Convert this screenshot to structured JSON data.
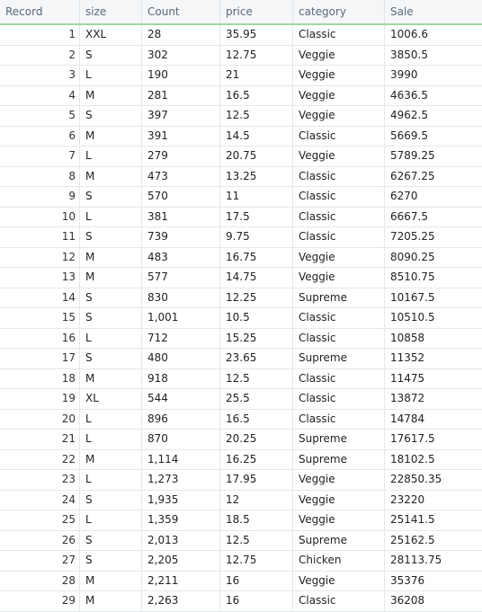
{
  "table": {
    "columns": [
      "Record",
      "size",
      "Count",
      "price",
      "category",
      "Sale"
    ],
    "rows": [
      [
        "1",
        "XXL",
        "28",
        "35.95",
        "Classic",
        "1006.6"
      ],
      [
        "2",
        "S",
        "302",
        "12.75",
        "Veggie",
        "3850.5"
      ],
      [
        "3",
        "L",
        "190",
        "21",
        "Veggie",
        "3990"
      ],
      [
        "4",
        "M",
        "281",
        "16.5",
        "Veggie",
        "4636.5"
      ],
      [
        "5",
        "S",
        "397",
        "12.5",
        "Veggie",
        "4962.5"
      ],
      [
        "6",
        "M",
        "391",
        "14.5",
        "Classic",
        "5669.5"
      ],
      [
        "7",
        "L",
        "279",
        "20.75",
        "Veggie",
        "5789.25"
      ],
      [
        "8",
        "M",
        "473",
        "13.25",
        "Classic",
        "6267.25"
      ],
      [
        "9",
        "S",
        "570",
        "11",
        "Classic",
        "6270"
      ],
      [
        "10",
        "L",
        "381",
        "17.5",
        "Classic",
        "6667.5"
      ],
      [
        "11",
        "S",
        "739",
        "9.75",
        "Classic",
        "7205.25"
      ],
      [
        "12",
        "M",
        "483",
        "16.75",
        "Veggie",
        "8090.25"
      ],
      [
        "13",
        "M",
        "577",
        "14.75",
        "Veggie",
        "8510.75"
      ],
      [
        "14",
        "S",
        "830",
        "12.25",
        "Supreme",
        "10167.5"
      ],
      [
        "15",
        "S",
        "1,001",
        "10.5",
        "Classic",
        "10510.5"
      ],
      [
        "16",
        "L",
        "712",
        "15.25",
        "Classic",
        "10858"
      ],
      [
        "17",
        "S",
        "480",
        "23.65",
        "Supreme",
        "11352"
      ],
      [
        "18",
        "M",
        "918",
        "12.5",
        "Classic",
        "11475"
      ],
      [
        "19",
        "XL",
        "544",
        "25.5",
        "Classic",
        "13872"
      ],
      [
        "20",
        "L",
        "896",
        "16.5",
        "Classic",
        "14784"
      ],
      [
        "21",
        "L",
        "870",
        "20.25",
        "Supreme",
        "17617.5"
      ],
      [
        "22",
        "M",
        "1,114",
        "16.25",
        "Supreme",
        "18102.5"
      ],
      [
        "23",
        "L",
        "1,273",
        "17.95",
        "Veggie",
        "22850.35"
      ],
      [
        "24",
        "S",
        "1,935",
        "12",
        "Veggie",
        "23220"
      ],
      [
        "25",
        "L",
        "1,359",
        "18.5",
        "Veggie",
        "25141.5"
      ],
      [
        "26",
        "S",
        "2,013",
        "12.5",
        "Supreme",
        "25162.5"
      ],
      [
        "27",
        "S",
        "2,205",
        "12.75",
        "Chicken",
        "28113.75"
      ],
      [
        "28",
        "M",
        "2,211",
        "16",
        "Veggie",
        "35376"
      ],
      [
        "29",
        "M",
        "2,263",
        "16",
        "Classic",
        "36208"
      ]
    ]
  }
}
